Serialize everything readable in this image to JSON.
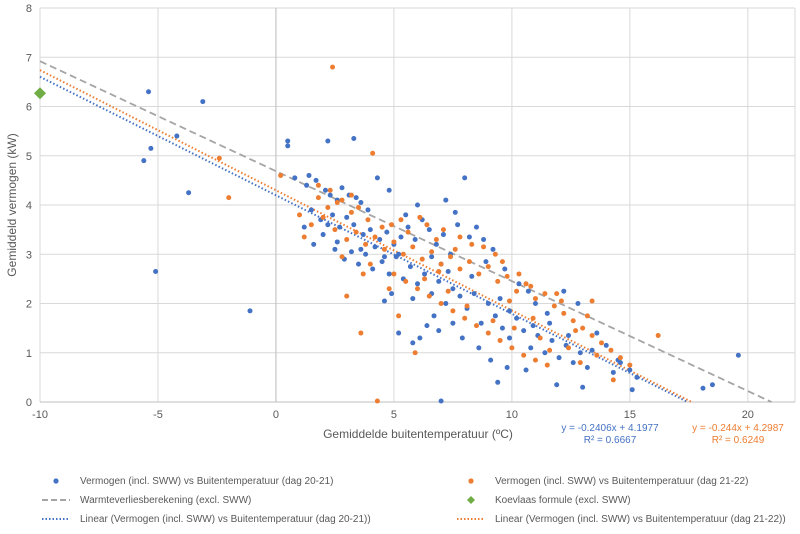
{
  "chart_data": {
    "type": "scatter",
    "xlabel": "Gemiddelde buitentemperatuur (ºC)",
    "ylabel": "Gemiddeld vermogen (kW)",
    "xlim": [
      -10,
      22
    ],
    "ylim": [
      0,
      8
    ],
    "x_ticks": [
      -10,
      -5,
      0,
      5,
      10,
      15,
      20
    ],
    "y_ticks": [
      0,
      1,
      2,
      3,
      4,
      5,
      6,
      7,
      8
    ],
    "grid": true,
    "legend_position": "bottom",
    "series": [
      {
        "name": "Vermogen (incl. SWW) vs Buitentemperatuur (dag 20-21)",
        "kind": "scatter",
        "color": "#4472C4",
        "points": [
          [
            -5.4,
            6.3
          ],
          [
            -3.1,
            6.1
          ],
          [
            -5.3,
            5.15
          ],
          [
            -5.6,
            4.9
          ],
          [
            -4.2,
            5.4
          ],
          [
            -3.7,
            4.25
          ],
          [
            -5.1,
            2.65
          ],
          [
            -1.1,
            1.85
          ],
          [
            0.5,
            5.3
          ],
          [
            0.5,
            5.2
          ],
          [
            2.2,
            5.3
          ],
          [
            3.3,
            5.35
          ],
          [
            4.8,
            4.3
          ],
          [
            4.3,
            4.55
          ],
          [
            0.8,
            4.55
          ],
          [
            1.3,
            4.4
          ],
          [
            1.4,
            4.6
          ],
          [
            1.7,
            4.5
          ],
          [
            2.1,
            4.3
          ],
          [
            2.6,
            4.1
          ],
          [
            2.8,
            4.35
          ],
          [
            3.1,
            4.2
          ],
          [
            3.6,
            4.05
          ],
          [
            1.5,
            3.9
          ],
          [
            1.9,
            3.7
          ],
          [
            2.2,
            3.6
          ],
          [
            2.4,
            3.8
          ],
          [
            2.7,
            3.55
          ],
          [
            3.0,
            3.75
          ],
          [
            3.3,
            3.6
          ],
          [
            3.7,
            3.4
          ],
          [
            4.0,
            3.5
          ],
          [
            4.4,
            3.3
          ],
          [
            4.7,
            3.45
          ],
          [
            5.0,
            3.2
          ],
          [
            5.3,
            3.35
          ],
          [
            5.6,
            3.55
          ],
          [
            5.9,
            3.3
          ],
          [
            6.2,
            3.7
          ],
          [
            6.5,
            3.5
          ],
          [
            6.8,
            3.2
          ],
          [
            7.1,
            3.4
          ],
          [
            7.4,
            3.0
          ],
          [
            7.7,
            3.6
          ],
          [
            8.0,
            4.55
          ],
          [
            7.2,
            4.1
          ],
          [
            6.0,
            4.0
          ],
          [
            1.6,
            3.2
          ],
          [
            2.0,
            3.4
          ],
          [
            2.5,
            3.1
          ],
          [
            2.9,
            2.9
          ],
          [
            3.2,
            3.05
          ],
          [
            3.5,
            2.8
          ],
          [
            3.8,
            3.0
          ],
          [
            4.1,
            2.7
          ],
          [
            4.5,
            2.85
          ],
          [
            4.8,
            2.6
          ],
          [
            5.1,
            2.95
          ],
          [
            5.4,
            2.5
          ],
          [
            5.7,
            2.75
          ],
          [
            6.0,
            2.4
          ],
          [
            6.3,
            2.6
          ],
          [
            6.6,
            2.2
          ],
          [
            6.9,
            2.45
          ],
          [
            7.2,
            2.0
          ],
          [
            7.5,
            2.3
          ],
          [
            7.8,
            2.15
          ],
          [
            8.1,
            1.9
          ],
          [
            8.4,
            2.2
          ],
          [
            8.7,
            1.6
          ],
          [
            9.0,
            2.0
          ],
          [
            9.3,
            1.75
          ],
          [
            9.6,
            1.5
          ],
          [
            9.9,
            1.3
          ],
          [
            10.2,
            1.7
          ],
          [
            10.5,
            1.45
          ],
          [
            10.8,
            1.1
          ],
          [
            11.1,
            1.35
          ],
          [
            11.4,
            1.0
          ],
          [
            11.7,
            1.25
          ],
          [
            12.0,
            0.9
          ],
          [
            12.3,
            1.15
          ],
          [
            12.6,
            0.8
          ],
          [
            12.9,
            1.0
          ],
          [
            13.2,
            0.7
          ],
          [
            13.6,
            1.4
          ],
          [
            14.0,
            1.15
          ],
          [
            14.5,
            0.85
          ],
          [
            15.0,
            0.65
          ],
          [
            15.3,
            0.5
          ],
          [
            11.5,
            1.8
          ],
          [
            12.2,
            2.25
          ],
          [
            12.8,
            2.0
          ],
          [
            11.0,
            2.0
          ],
          [
            10.3,
            2.4
          ],
          [
            9.7,
            2.7
          ],
          [
            9.2,
            3.1
          ],
          [
            8.8,
            3.3
          ],
          [
            8.5,
            3.55
          ],
          [
            8.2,
            3.35
          ],
          [
            7.6,
            3.85
          ],
          [
            7.0,
            2.8
          ],
          [
            6.7,
            1.75
          ],
          [
            6.4,
            1.55
          ],
          [
            6.1,
            1.3
          ],
          [
            5.8,
            1.2
          ],
          [
            5.2,
            1.4
          ],
          [
            4.9,
            2.2
          ],
          [
            4.6,
            2.05
          ],
          [
            7.9,
            1.3
          ],
          [
            8.6,
            1.1
          ],
          [
            9.1,
            0.85
          ],
          [
            9.4,
            0.4
          ],
          [
            9.8,
            0.7
          ],
          [
            10.6,
            0.65
          ],
          [
            11.9,
            0.35
          ],
          [
            13.0,
            0.3
          ],
          [
            14.3,
            0.6
          ],
          [
            15.1,
            0.25
          ],
          [
            18.1,
            0.28
          ],
          [
            18.5,
            0.35
          ],
          [
            19.6,
            0.95
          ],
          [
            14.6,
            0.8
          ],
          [
            7.0,
            0.02
          ],
          [
            3.9,
            3.9
          ],
          [
            3.4,
            4.15
          ],
          [
            2.3,
            4.2
          ],
          [
            1.2,
            3.55
          ],
          [
            5.5,
            3.8
          ],
          [
            5.2,
            3.0
          ],
          [
            4.2,
            3.15
          ],
          [
            6.6,
            2.95
          ],
          [
            7.3,
            2.65
          ],
          [
            8.3,
            2.55
          ],
          [
            9.5,
            2.1
          ],
          [
            10.9,
            1.55
          ],
          [
            11.6,
            1.6
          ],
          [
            12.4,
            1.35
          ],
          [
            13.4,
            1.05
          ],
          [
            4.6,
            2.95
          ],
          [
            3.6,
            3.1
          ],
          [
            2.6,
            3.25
          ],
          [
            8.9,
            2.85
          ],
          [
            5.8,
            2.1
          ],
          [
            6.9,
            1.45
          ],
          [
            9.9,
            1.85
          ],
          [
            10.7,
            2.25
          ],
          [
            7.5,
            1.6
          ]
        ]
      },
      {
        "name": "Vermogen (incl. SWW) vs Buitentemperatuur (dag 21-22)",
        "kind": "scatter",
        "color": "#ED7D31",
        "points": [
          [
            -2.4,
            4.95
          ],
          [
            -2.0,
            4.15
          ],
          [
            2.4,
            6.8
          ],
          [
            4.1,
            5.05
          ],
          [
            1.8,
            4.4
          ],
          [
            2.3,
            4.3
          ],
          [
            2.8,
            4.1
          ],
          [
            3.2,
            4.2
          ],
          [
            3.5,
            3.95
          ],
          [
            3.9,
            3.7
          ],
          [
            1.0,
            3.8
          ],
          [
            1.5,
            3.6
          ],
          [
            2.0,
            3.75
          ],
          [
            2.5,
            3.5
          ],
          [
            3.0,
            3.3
          ],
          [
            3.4,
            3.45
          ],
          [
            3.8,
            3.2
          ],
          [
            4.2,
            3.35
          ],
          [
            4.6,
            3.1
          ],
          [
            5.0,
            3.25
          ],
          [
            5.4,
            3.0
          ],
          [
            5.8,
            3.15
          ],
          [
            6.2,
            2.9
          ],
          [
            6.6,
            3.05
          ],
          [
            7.0,
            2.8
          ],
          [
            7.4,
            2.95
          ],
          [
            7.8,
            2.7
          ],
          [
            8.2,
            2.85
          ],
          [
            8.6,
            2.6
          ],
          [
            9.0,
            2.75
          ],
          [
            9.4,
            2.45
          ],
          [
            9.8,
            2.55
          ],
          [
            10.2,
            2.25
          ],
          [
            10.6,
            2.4
          ],
          [
            11.0,
            2.1
          ],
          [
            11.4,
            2.2
          ],
          [
            11.8,
            1.95
          ],
          [
            12.2,
            1.8
          ],
          [
            12.6,
            1.65
          ],
          [
            13.0,
            1.5
          ],
          [
            13.4,
            1.35
          ],
          [
            13.8,
            1.2
          ],
          [
            14.2,
            1.05
          ],
          [
            14.6,
            0.9
          ],
          [
            15.0,
            0.75
          ],
          [
            5.0,
            2.6
          ],
          [
            5.5,
            2.45
          ],
          [
            6.0,
            2.3
          ],
          [
            6.5,
            2.15
          ],
          [
            7.0,
            2.0
          ],
          [
            7.5,
            1.85
          ],
          [
            8.0,
            1.7
          ],
          [
            8.5,
            1.55
          ],
          [
            9.0,
            1.4
          ],
          [
            9.5,
            1.25
          ],
          [
            10.0,
            1.1
          ],
          [
            10.5,
            0.95
          ],
          [
            11.0,
            0.85
          ],
          [
            11.5,
            0.75
          ],
          [
            3.0,
            2.15
          ],
          [
            3.6,
            1.4
          ],
          [
            5.9,
            1.0
          ],
          [
            4.3,
            0.02
          ],
          [
            4.9,
            3.6
          ],
          [
            5.6,
            3.45
          ],
          [
            6.4,
            3.6
          ],
          [
            7.1,
            3.5
          ],
          [
            7.8,
            3.35
          ],
          [
            8.3,
            3.2
          ],
          [
            9.3,
            3.0
          ],
          [
            10.3,
            2.6
          ],
          [
            12.1,
            2.05
          ],
          [
            13.4,
            2.05
          ],
          [
            16.2,
            1.35
          ],
          [
            14.3,
            0.45
          ],
          [
            1.8,
            4.15
          ],
          [
            2.2,
            3.95
          ],
          [
            2.6,
            4.05
          ],
          [
            3.2,
            3.85
          ],
          [
            4.5,
            3.55
          ],
          [
            5.3,
            3.7
          ],
          [
            6.1,
            3.75
          ],
          [
            6.8,
            3.3
          ],
          [
            7.6,
            3.1
          ],
          [
            8.8,
            3.15
          ],
          [
            9.6,
            2.85
          ],
          [
            10.8,
            2.35
          ],
          [
            11.9,
            2.2
          ],
          [
            12.7,
            1.45
          ],
          [
            13.2,
            1.75
          ],
          [
            4.0,
            2.8
          ],
          [
            4.8,
            2.3
          ],
          [
            6.3,
            2.5
          ],
          [
            7.3,
            2.25
          ],
          [
            8.1,
            1.95
          ],
          [
            9.2,
            1.65
          ],
          [
            10.1,
            1.5
          ],
          [
            11.2,
            1.3
          ],
          [
            12.4,
            1.1
          ],
          [
            13.6,
            0.95
          ],
          [
            2.8,
            2.95
          ],
          [
            3.7,
            2.6
          ],
          [
            0.2,
            4.6
          ],
          [
            1.2,
            3.35
          ],
          [
            6.9,
            2.65
          ],
          [
            5.2,
            1.75
          ],
          [
            9.9,
            2.05
          ],
          [
            10.9,
            1.7
          ],
          [
            11.6,
            1.05
          ],
          [
            12.9,
            0.8
          ]
        ]
      },
      {
        "name": "Warmteverliesberekening (excl. SWW)",
        "kind": "line",
        "style": "dashed",
        "color": "#A5A5A5",
        "points": [
          [
            -10,
            6.92
          ],
          [
            21,
            0
          ]
        ]
      },
      {
        "name": "Koevlaas formule (excl. SWW)",
        "kind": "marker",
        "marker": "diamond",
        "color": "#70AD47",
        "points": [
          [
            -10,
            6.27
          ]
        ]
      },
      {
        "name": "Linear (Vermogen (incl. SWW) vs Buitentemperatuur (dag 20-21))",
        "kind": "trendline",
        "style": "dotted",
        "color": "#4472C4",
        "slope": -0.2406,
        "intercept": 4.1977,
        "x_range": [
          -10,
          17.45
        ]
      },
      {
        "name": "Linear (Vermogen (incl. SWW) vs Buitentemperatuur (dag 21-22))",
        "kind": "trendline",
        "style": "dotted",
        "color": "#ED7D31",
        "slope": -0.244,
        "intercept": 4.2987,
        "x_range": [
          -10,
          17.62
        ]
      }
    ],
    "annotations": [
      {
        "series": "dag 20-21",
        "color": "#4472C4",
        "equation": "y = -0.2406x + 4.1977",
        "r2": "R² = 0.6667"
      },
      {
        "series": "dag 21-22",
        "color": "#ED7D31",
        "equation": "y = -0.244x + 4.2987",
        "r2": "R² = 0.6249"
      }
    ]
  },
  "legend": {
    "items": [
      {
        "label": "Vermogen (incl. SWW) vs Buitentemperatuur (dag 20-21)",
        "swatch": "dot",
        "color": "#4472C4"
      },
      {
        "label": "Vermogen (incl. SWW) vs Buitentemperatuur (dag 21-22)",
        "swatch": "dot",
        "color": "#ED7D31"
      },
      {
        "label": "Warmteverliesberekening (excl. SWW)",
        "swatch": "dashed",
        "color": "#A5A5A5"
      },
      {
        "label": "Koevlaas formule (excl. SWW)",
        "swatch": "diamond",
        "color": "#70AD47"
      },
      {
        "label": "Linear (Vermogen (incl. SWW) vs Buitentemperatuur (dag 20-21))",
        "swatch": "dotted",
        "color": "#4472C4"
      },
      {
        "label": "Linear (Vermogen (incl. SWW) vs Buitentemperatuur (dag 21-22))",
        "swatch": "dotted",
        "color": "#ED7D31"
      }
    ]
  }
}
